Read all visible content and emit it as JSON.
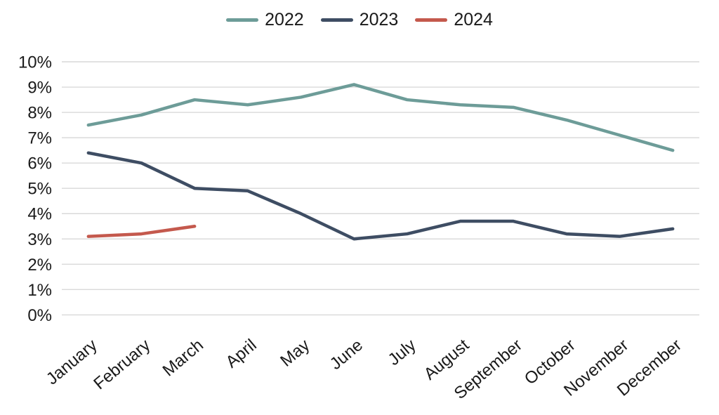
{
  "chart_data": {
    "type": "line",
    "title": "",
    "xlabel": "",
    "ylabel": "",
    "categories": [
      "January",
      "February",
      "March",
      "April",
      "May",
      "June",
      "July",
      "August",
      "September",
      "October",
      "November",
      "December"
    ],
    "yticks": [
      "0%",
      "1%",
      "2%",
      "3%",
      "4%",
      "5%",
      "6%",
      "7%",
      "8%",
      "9%",
      "10%"
    ],
    "ylim": [
      0,
      10
    ],
    "grid": "horizontal-only",
    "gridline_color": "#d9d9d9",
    "text_color": "#1a1a1a",
    "legend_position": "top-center",
    "series": [
      {
        "name": "2022",
        "color": "#6d9c98",
        "values": [
          7.5,
          7.9,
          8.5,
          8.3,
          8.6,
          9.1,
          8.5,
          8.3,
          8.2,
          7.7,
          7.1,
          6.5
        ]
      },
      {
        "name": "2023",
        "color": "#3e4d63",
        "values": [
          6.4,
          6.0,
          5.0,
          4.9,
          4.0,
          3.0,
          3.2,
          3.7,
          3.7,
          3.2,
          3.1,
          3.4
        ]
      },
      {
        "name": "2024",
        "color": "#c4594d",
        "values": [
          3.1,
          3.2,
          3.5
        ]
      }
    ]
  }
}
